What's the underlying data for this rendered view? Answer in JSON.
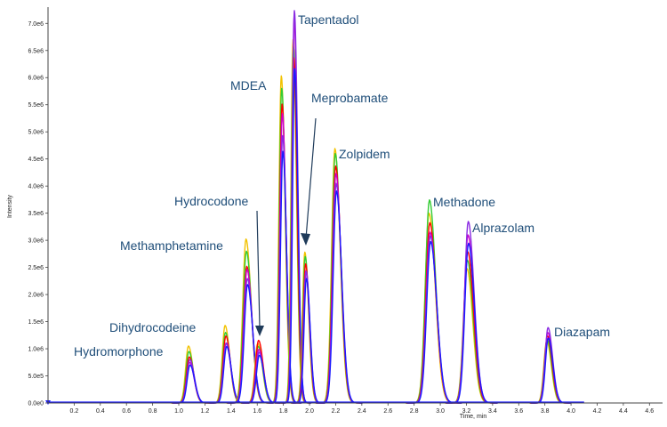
{
  "chart_data": {
    "type": "line",
    "title": "",
    "xlabel": "Time, min",
    "ylabel": "Intensity",
    "xlim": [
      0.0,
      4.7
    ],
    "ylim": [
      0,
      7300000
    ],
    "x_ticks": [
      "0.2",
      "0.4",
      "0.6",
      "0.8",
      "1.0",
      "1.2",
      "1.4",
      "1.6",
      "1.8",
      "2.0",
      "2.2",
      "2.4",
      "2.6",
      "2.8",
      "3.0",
      "3.2",
      "3.4",
      "3.6",
      "3.8",
      "4.0",
      "4.2",
      "4.4",
      "4.6"
    ],
    "y_ticks": [
      "0.0e0",
      "5.0e5",
      "1.0e6",
      "1.5e6",
      "2.0e6",
      "2.5e6",
      "3.0e6",
      "3.5e6",
      "4.0e6",
      "4.5e6",
      "5.0e6",
      "5.5e6",
      "6.0e6",
      "6.5e6",
      "7.0e6"
    ],
    "grid": false,
    "series_colors": [
      "#f2c200",
      "#33cc33",
      "#ff0000",
      "#cc00cc",
      "#8a2be2",
      "#1a1aff"
    ],
    "peaks": [
      {
        "compound": "Hydromorphone",
        "rt": 1.08,
        "height": 1000000,
        "width": 0.022,
        "scales": [
          1.05,
          0.95,
          0.85,
          0.75,
          0.8,
          0.7
        ]
      },
      {
        "compound": "Dihydrocodeine",
        "rt": 1.36,
        "height": 1300000,
        "width": 0.022,
        "scales": [
          1.1,
          1.0,
          0.95,
          0.85,
          0.85,
          0.8
        ]
      },
      {
        "compound": "Methamphetamine",
        "rt": 1.52,
        "height": 2800000,
        "width": 0.025,
        "scales": [
          1.08,
          1.0,
          0.9,
          0.88,
          0.82,
          0.78
        ]
      },
      {
        "compound": "Hydrocodone",
        "rt": 1.61,
        "height": 1100000,
        "width": 0.022,
        "scales": [
          1.0,
          0.95,
          1.05,
          0.9,
          0.85,
          0.8
        ]
      },
      {
        "compound": "MDEA",
        "rt": 1.79,
        "height": 5800000,
        "width": 0.018,
        "scales": [
          1.04,
          1.0,
          0.95,
          0.92,
          0.85,
          0.8
        ]
      },
      {
        "compound": "Tapentadol",
        "rt": 1.88,
        "height": 6700000,
        "width": 0.016,
        "scales": [
          1.0,
          0.98,
          0.95,
          1.06,
          1.08,
          0.92
        ]
      },
      {
        "compound": "Meprobamate",
        "rt": 1.97,
        "height": 2700000,
        "width": 0.018,
        "scales": [
          1.03,
          1.0,
          0.95,
          0.9,
          0.9,
          0.85
        ]
      },
      {
        "compound": "Zolpidem",
        "rt": 2.2,
        "height": 4600000,
        "width": 0.025,
        "scales": [
          1.02,
          1.0,
          0.95,
          0.92,
          0.88,
          0.85
        ]
      },
      {
        "compound": "Methadone",
        "rt": 2.92,
        "height": 3500000,
        "width": 0.03,
        "scales": [
          1.0,
          1.07,
          0.95,
          0.9,
          0.88,
          0.85
        ]
      },
      {
        "compound": "Alprazolam",
        "rt": 3.21,
        "height": 3100000,
        "width": 0.028,
        "scales": [
          0.8,
          0.85,
          0.9,
          1.0,
          1.08,
          0.95
        ]
      },
      {
        "compound": "Diazapam",
        "rt": 3.82,
        "height": 1300000,
        "width": 0.022,
        "scales": [
          0.88,
          0.9,
          0.95,
          1.0,
          1.07,
          0.92
        ]
      }
    ],
    "annotations": [
      {
        "text": "Tapentadol"
      },
      {
        "text": "MDEA"
      },
      {
        "text": "Meprobamate"
      },
      {
        "text": "Zolpidem"
      },
      {
        "text": "Hydrocodone"
      },
      {
        "text": "Methamphetamine"
      },
      {
        "text": "Dihydrocodeine"
      },
      {
        "text": "Hydromorphone"
      },
      {
        "text": "Methadone"
      },
      {
        "text": "Alprazolam"
      },
      {
        "text": "Diazapam"
      }
    ]
  }
}
